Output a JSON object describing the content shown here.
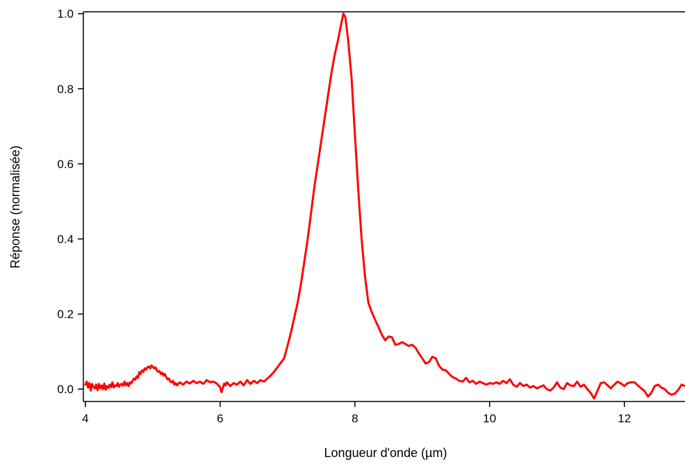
{
  "chart_data": {
    "type": "line",
    "title": "",
    "xlabel": "Longueur d'onde (µm)",
    "ylabel": "Réponse (normalisée)",
    "xlim": [
      3.97,
      12.9
    ],
    "ylim": [
      -0.033,
      1.005
    ],
    "xticks": [
      4,
      6,
      8,
      10,
      12
    ],
    "yticks": [
      0.0,
      0.2,
      0.4,
      0.6,
      0.8,
      1.0
    ],
    "xtick_labels": [
      "4",
      "6",
      "8",
      10,
      12
    ],
    "ytick_labels": [
      "0.0",
      "0.2",
      "0.4",
      "0.6",
      "0.8",
      "1.0"
    ],
    "grid": false,
    "legend": "none",
    "series": [
      {
        "color": "#ff0000",
        "x": [
          4.0,
          4.02,
          4.04,
          4.06,
          4.08,
          4.1,
          4.12,
          4.14,
          4.16,
          4.18,
          4.2,
          4.22,
          4.24,
          4.26,
          4.28,
          4.3,
          4.32,
          4.34,
          4.36,
          4.38,
          4.4,
          4.42,
          4.44,
          4.46,
          4.48,
          4.5,
          4.52,
          4.54,
          4.56,
          4.58,
          4.6,
          4.62,
          4.64,
          4.66,
          4.68,
          4.7,
          4.72,
          4.74,
          4.76,
          4.78,
          4.8,
          4.82,
          4.84,
          4.86,
          4.88,
          4.9,
          4.92,
          4.94,
          4.96,
          4.98,
          5.0,
          5.02,
          5.04,
          5.06,
          5.08,
          5.1,
          5.12,
          5.14,
          5.16,
          5.18,
          5.2,
          5.22,
          5.24,
          5.26,
          5.28,
          5.3,
          5.32,
          5.34,
          5.36,
          5.38,
          5.4,
          5.45,
          5.5,
          5.55,
          5.6,
          5.65,
          5.7,
          5.75,
          5.8,
          5.85,
          5.9,
          5.95,
          6.0,
          6.02,
          6.04,
          6.06,
          6.08,
          6.1,
          6.15,
          6.2,
          6.25,
          6.3,
          6.35,
          6.4,
          6.45,
          6.5,
          6.55,
          6.6,
          6.65,
          6.7,
          6.75,
          6.8,
          6.85,
          6.9,
          6.95,
          7.0,
          7.05,
          7.1,
          7.15,
          7.2,
          7.25,
          7.3,
          7.35,
          7.4,
          7.45,
          7.5,
          7.55,
          7.6,
          7.65,
          7.7,
          7.75,
          7.8,
          7.83,
          7.86,
          7.9,
          7.95,
          8.0,
          8.05,
          8.1,
          8.15,
          8.2,
          8.25,
          8.3,
          8.35,
          8.4,
          8.45,
          8.5,
          8.55,
          8.6,
          8.65,
          8.7,
          8.75,
          8.8,
          8.85,
          8.9,
          8.95,
          9.0,
          9.05,
          9.1,
          9.15,
          9.2,
          9.25,
          9.3,
          9.35,
          9.4,
          9.45,
          9.5,
          9.55,
          9.6,
          9.65,
          9.7,
          9.75,
          9.8,
          9.85,
          9.9,
          9.95,
          10.0,
          10.05,
          10.1,
          10.15,
          10.2,
          10.25,
          10.3,
          10.35,
          10.4,
          10.45,
          10.5,
          10.55,
          10.6,
          10.65,
          10.7,
          10.75,
          10.8,
          10.85,
          10.9,
          10.95,
          11.0,
          11.05,
          11.1,
          11.15,
          11.2,
          11.25,
          11.3,
          11.35,
          11.4,
          11.45,
          11.5,
          11.55,
          11.6,
          11.65,
          11.7,
          11.75,
          11.8,
          11.85,
          11.9,
          11.95,
          12.0,
          12.05,
          12.1,
          12.15,
          12.2,
          12.25,
          12.3,
          12.35,
          12.4,
          12.45,
          12.5,
          12.55,
          12.6,
          12.65,
          12.7,
          12.75,
          12.8,
          12.85,
          12.9
        ],
        "y": [
          0.012,
          0.02,
          0.004,
          0.016,
          -0.004,
          0.014,
          0.006,
          0.002,
          0.012,
          -0.003,
          0.014,
          0.002,
          0.01,
          0.0,
          0.015,
          -0.002,
          0.008,
          0.003,
          0.012,
          0.005,
          0.018,
          0.004,
          0.01,
          0.008,
          0.016,
          0.006,
          0.012,
          0.014,
          0.009,
          0.02,
          0.01,
          0.016,
          0.008,
          0.018,
          0.015,
          0.022,
          0.028,
          0.025,
          0.034,
          0.03,
          0.045,
          0.04,
          0.05,
          0.046,
          0.055,
          0.052,
          0.058,
          0.06,
          0.055,
          0.063,
          0.06,
          0.055,
          0.058,
          0.05,
          0.046,
          0.048,
          0.04,
          0.044,
          0.036,
          0.04,
          0.032,
          0.026,
          0.028,
          0.02,
          0.018,
          0.022,
          0.012,
          0.016,
          0.01,
          0.014,
          0.018,
          0.012,
          0.02,
          0.015,
          0.022,
          0.016,
          0.02,
          0.014,
          0.024,
          0.018,
          0.02,
          0.015,
          0.005,
          -0.008,
          0.002,
          0.015,
          0.01,
          0.018,
          0.008,
          0.016,
          0.012,
          0.02,
          0.01,
          0.024,
          0.014,
          0.022,
          0.016,
          0.024,
          0.02,
          0.028,
          0.036,
          0.046,
          0.058,
          0.07,
          0.082,
          0.115,
          0.15,
          0.19,
          0.23,
          0.28,
          0.34,
          0.4,
          0.47,
          0.54,
          0.6,
          0.66,
          0.72,
          0.78,
          0.84,
          0.89,
          0.93,
          0.975,
          1.0,
          0.99,
          0.93,
          0.83,
          0.68,
          0.53,
          0.4,
          0.3,
          0.23,
          0.205,
          0.185,
          0.165,
          0.145,
          0.13,
          0.14,
          0.138,
          0.118,
          0.12,
          0.125,
          0.12,
          0.115,
          0.118,
          0.11,
          0.095,
          0.082,
          0.068,
          0.072,
          0.086,
          0.082,
          0.062,
          0.052,
          0.05,
          0.04,
          0.032,
          0.028,
          0.022,
          0.02,
          0.03,
          0.018,
          0.022,
          0.014,
          0.02,
          0.016,
          0.012,
          0.016,
          0.014,
          0.018,
          0.014,
          0.022,
          0.016,
          0.026,
          0.012,
          0.006,
          0.016,
          0.008,
          0.012,
          0.004,
          0.008,
          0.002,
          0.006,
          0.01,
          0.0,
          -0.004,
          0.004,
          0.018,
          0.004,
          0.0,
          0.016,
          0.01,
          0.008,
          0.02,
          0.006,
          0.012,
          0.0,
          -0.01,
          -0.025,
          -0.005,
          0.016,
          0.018,
          0.01,
          0.002,
          0.012,
          0.02,
          0.015,
          0.008,
          0.016,
          0.018,
          0.018,
          0.01,
          0.002,
          -0.005,
          -0.02,
          -0.01,
          0.008,
          0.012,
          0.004,
          0.0,
          -0.01,
          -0.015,
          -0.012,
          -0.002,
          0.012,
          0.008
        ]
      }
    ]
  }
}
